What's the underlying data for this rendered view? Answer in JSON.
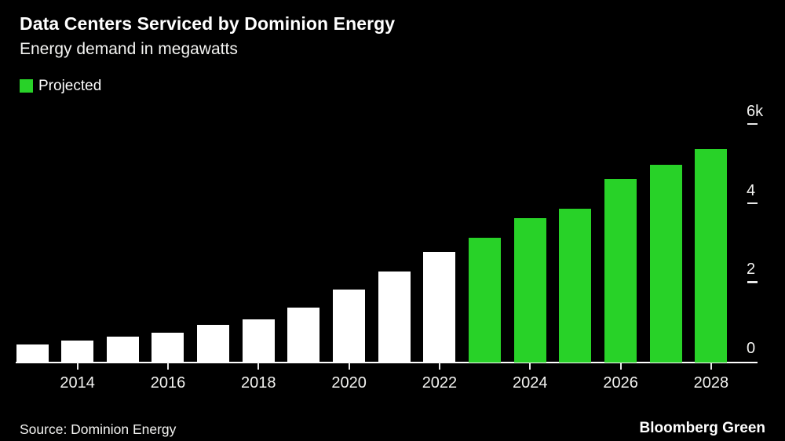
{
  "header": {
    "title": "Data Centers Serviced by Dominion Energy",
    "subtitle": "Energy demand in megawatts"
  },
  "legend": {
    "projected_label": "Projected",
    "projected_color": "#28d228"
  },
  "footer": {
    "source": "Source: Dominion Energy",
    "brand": "Bloomberg Green"
  },
  "chart_data": {
    "type": "bar",
    "title": "Data Centers Serviced by Dominion Energy",
    "subtitle": "Energy demand in megawatts",
    "unit": "megawatts",
    "categories": [
      2013,
      2014,
      2015,
      2016,
      2017,
      2018,
      2019,
      2020,
      2021,
      2022,
      2023,
      2024,
      2025,
      2026,
      2027,
      2028
    ],
    "values": [
      450,
      550,
      650,
      750,
      950,
      1100,
      1400,
      1850,
      2300,
      2800,
      3150,
      3650,
      3900,
      4650,
      5000,
      5400
    ],
    "projected_from": 2023,
    "colors": {
      "actual": "#ffffff",
      "projected": "#28d228",
      "background": "#000000",
      "axis": "#ffffff"
    },
    "y_axis": {
      "side": "right",
      "max": 6000,
      "ticks": [
        {
          "label": "0",
          "value": 0
        },
        {
          "label": "2",
          "value": 2000
        },
        {
          "label": "4",
          "value": 4000
        },
        {
          "label": "6k",
          "value": 6000
        }
      ]
    },
    "x_axis": {
      "tick_labels": [
        "2014",
        "2016",
        "2018",
        "2020",
        "2022",
        "2024",
        "2026",
        "2028"
      ]
    },
    "legend": [
      {
        "label": "Projected",
        "color": "#28d228"
      }
    ],
    "grid": false,
    "legend_position": "top-left"
  }
}
